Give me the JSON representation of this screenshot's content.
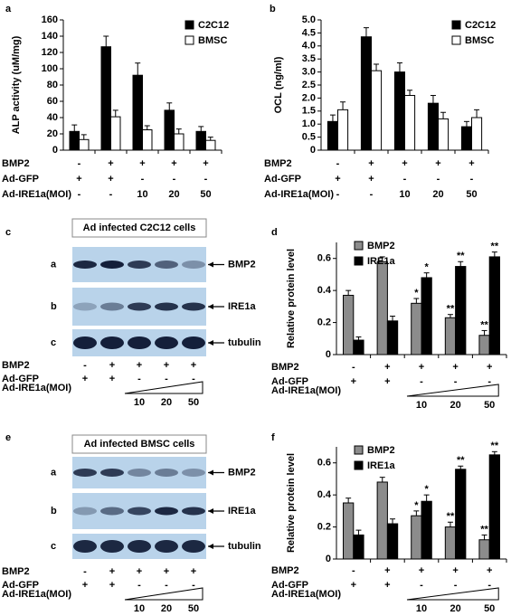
{
  "chart_data": [
    {
      "type": "bar",
      "panel": "a",
      "ylabel": "ALP activity (uM/mg)",
      "ylim": [
        0,
        160
      ],
      "yticks": [
        0,
        20,
        40,
        60,
        80,
        100,
        120,
        140,
        160
      ],
      "legend": "upper right",
      "series": [
        {
          "name": "C2C12",
          "color": "#000000",
          "values": [
            23,
            127,
            92,
            49,
            23
          ],
          "errors": [
            8,
            13,
            15,
            9,
            6
          ]
        },
        {
          "name": "BMSC",
          "color": "#ffffff",
          "values": [
            13,
            41,
            25,
            20,
            12
          ],
          "errors": [
            6,
            8,
            5,
            6,
            4
          ]
        }
      ],
      "conditions": [
        {
          "label": "BMP2",
          "values": [
            "-",
            "+",
            "+",
            "+",
            "+"
          ]
        },
        {
          "label": "Ad-GFP",
          "values": [
            "+",
            "+",
            "-",
            "-",
            "-"
          ]
        },
        {
          "label": "Ad-IRE1a(MOI)",
          "values": [
            "-",
            "-",
            "10",
            "20",
            "50"
          ]
        }
      ]
    },
    {
      "type": "bar",
      "panel": "b",
      "ylabel": "OCL (ng/ml)",
      "ylim": [
        0,
        5
      ],
      "legend": "upper right",
      "yticks": [
        0,
        0.5,
        {
          "value": 1,
          "label": "1.0"
        },
        1.5,
        {
          "value": 2,
          "label": "2.0"
        },
        2.5,
        {
          "value": 3,
          "label": "3.0"
        },
        3.5,
        {
          "value": 4,
          "label": "4.0"
        },
        4.5,
        {
          "value": 5,
          "label": "5.0"
        }
      ],
      "series": [
        {
          "name": "C2C12",
          "color": "#000000",
          "values": [
            1.1,
            4.35,
            3.0,
            1.8,
            0.9
          ],
          "errors": [
            0.25,
            0.35,
            0.35,
            0.3,
            0.2
          ]
        },
        {
          "name": "BMSC",
          "color": "#ffffff",
          "values": [
            1.55,
            3.05,
            2.1,
            1.2,
            1.25
          ],
          "errors": [
            0.3,
            0.25,
            0.2,
            0.25,
            0.3
          ]
        }
      ],
      "conditions": [
        {
          "label": "BMP2",
          "values": [
            "-",
            "+",
            "+",
            "+",
            "+"
          ]
        },
        {
          "label": "Ad-GFP",
          "values": [
            "+",
            "+",
            "-",
            "-",
            "-"
          ]
        },
        {
          "label": "Ad-IRE1a(MOI)",
          "values": [
            "-",
            "-",
            "10",
            "20",
            "50"
          ]
        }
      ]
    },
    {
      "type": "bar",
      "panel": "d",
      "ylabel": "Relative protein level",
      "ylim": [
        0,
        0.7
      ],
      "yticks": [
        0,
        0.2,
        0.4,
        0.6
      ],
      "legend": "upper left",
      "series": [
        {
          "name": "BMP2",
          "color": "#8c8c8c",
          "values": [
            0.37,
            0.58,
            0.32,
            0.23,
            0.12
          ],
          "errors": [
            0.03,
            0.03,
            0.03,
            0.02,
            0.03
          ],
          "significance": [
            null,
            null,
            "*",
            "**",
            "**"
          ]
        },
        {
          "name": "IRE1a",
          "color": "#000000",
          "values": [
            0.09,
            0.21,
            0.48,
            0.55,
            0.61
          ],
          "errors": [
            0.02,
            0.03,
            0.03,
            0.03,
            0.03
          ],
          "significance": [
            null,
            null,
            "*",
            "**",
            "**"
          ]
        }
      ],
      "conditions": [
        {
          "label": "BMP2",
          "values": [
            "-",
            "+",
            "+",
            "+",
            "+"
          ]
        },
        {
          "label": "Ad-GFP",
          "values": [
            "+",
            "+",
            "-",
            "-",
            "-"
          ]
        },
        {
          "label": "Ad-IRE1a(MOI)",
          "values": [
            null,
            null,
            "10",
            "20",
            "50"
          ]
        }
      ]
    },
    {
      "type": "bar",
      "panel": "f",
      "ylabel": "Relative protein level",
      "ylim": [
        0,
        0.7
      ],
      "yticks": [
        0,
        0.2,
        0.4,
        0.6
      ],
      "legend": "upper left",
      "series": [
        {
          "name": "BMP2",
          "color": "#8c8c8c",
          "values": [
            0.35,
            0.48,
            0.27,
            0.2,
            0.12
          ],
          "errors": [
            0.03,
            0.03,
            0.03,
            0.03,
            0.03
          ],
          "significance": [
            null,
            null,
            "*",
            "**",
            "**"
          ]
        },
        {
          "name": "IRE1a",
          "color": "#000000",
          "values": [
            0.15,
            0.22,
            0.36,
            0.56,
            0.65
          ],
          "errors": [
            0.03,
            0.03,
            0.04,
            0.02,
            0.02
          ],
          "significance": [
            null,
            null,
            "*",
            "**",
            "**"
          ]
        }
      ],
      "conditions": [
        {
          "label": "BMP2",
          "values": [
            "-",
            "+",
            "+",
            "+",
            "+"
          ]
        },
        {
          "label": "Ad-GFP",
          "values": [
            "+",
            "+",
            "-",
            "-",
            "-"
          ]
        },
        {
          "label": "Ad-IRE1a(MOI)",
          "values": [
            null,
            null,
            "10",
            "20",
            "50"
          ]
        }
      ]
    }
  ],
  "blots": [
    {
      "panel": "c",
      "title": "Ad infected C2C12 cells",
      "rows": [
        {
          "letter": "a",
          "label": "BMP2"
        },
        {
          "letter": "b",
          "label": "IRE1a"
        },
        {
          "letter": "c",
          "label": "tubulin"
        }
      ],
      "conditions": [
        {
          "label": "BMP2",
          "values": [
            "-",
            "+",
            "+",
            "+",
            "+"
          ]
        },
        {
          "label": "Ad-GFP",
          "values": [
            "+",
            "+",
            "-",
            "-",
            "-"
          ]
        },
        {
          "label": "Ad-IRE1a(MOI)",
          "values": [
            null,
            null,
            "10",
            "20",
            "50"
          ]
        }
      ]
    },
    {
      "panel": "e",
      "title": "Ad infected BMSC cells",
      "rows": [
        {
          "letter": "a",
          "label": "BMP2"
        },
        {
          "letter": "b",
          "label": "IRE1a"
        },
        {
          "letter": "c",
          "label": "tubulin"
        }
      ],
      "conditions": [
        {
          "label": "BMP2",
          "values": [
            "-",
            "+",
            "+",
            "+",
            "+"
          ]
        },
        {
          "label": "Ad-GFP",
          "values": [
            "+",
            "+",
            "-",
            "-",
            "-"
          ]
        },
        {
          "label": "Ad-IRE1a(MOI)",
          "values": [
            null,
            null,
            "10",
            "20",
            "50"
          ]
        }
      ]
    }
  ]
}
